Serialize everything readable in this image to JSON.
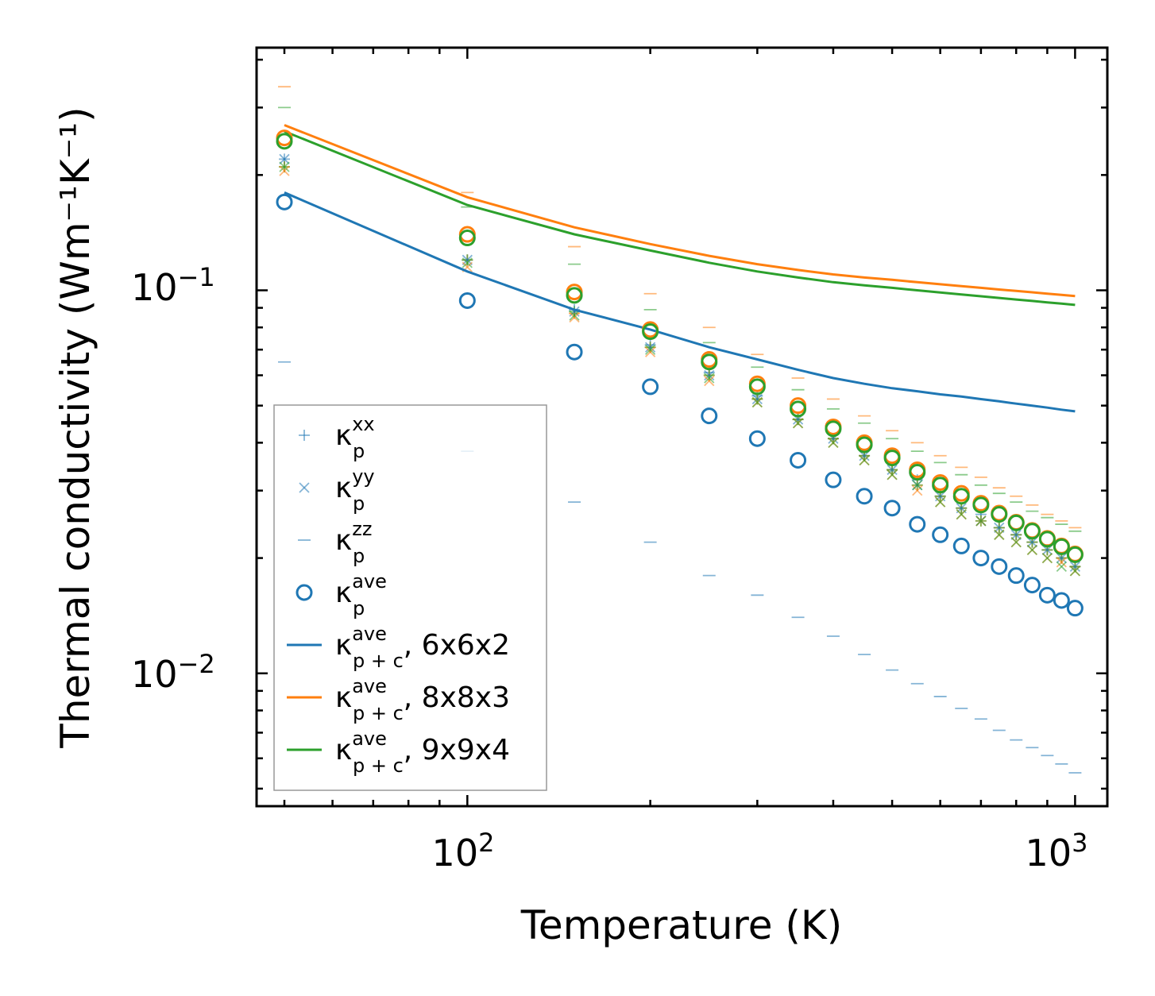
{
  "chart_data": {
    "type": "scatter",
    "title": "",
    "xlabel": "Temperature (K)",
    "ylabel": "Thermal conductivity (Wm⁻¹K⁻¹)",
    "xscale": "log",
    "yscale": "log",
    "xlim": [
      45,
      1130
    ],
    "ylim": [
      0.0045,
      0.43
    ],
    "x_ticks": [
      {
        "base": "10",
        "exp": "2"
      },
      {
        "base": "10",
        "exp": "3"
      }
    ],
    "y_ticks": [
      {
        "base": "10",
        "exp": "−1"
      },
      {
        "base": "10",
        "exp": "−2"
      }
    ],
    "x": [
      50,
      100,
      150,
      200,
      250,
      300,
      350,
      400,
      450,
      500,
      550,
      600,
      650,
      700,
      750,
      800,
      850,
      900,
      950,
      1000
    ],
    "series": [
      {
        "name": "k_p^xx 6x6x2",
        "marker": "plus",
        "color": "#1f77b4",
        "values": [
          0.22,
          0.12,
          0.089,
          0.072,
          0.061,
          0.053,
          0.046,
          0.041,
          0.037,
          0.034,
          0.032,
          0.029,
          0.027,
          0.026,
          0.024,
          0.023,
          0.022,
          0.021,
          0.02,
          0.019
        ]
      },
      {
        "name": "k_p^yy 6x6x2",
        "marker": "x",
        "color": "#1f77b4",
        "values": [
          0.22,
          0.12,
          0.088,
          0.071,
          0.06,
          0.052,
          0.046,
          0.041,
          0.037,
          0.034,
          0.031,
          0.029,
          0.027,
          0.025,
          0.024,
          0.023,
          0.022,
          0.021,
          0.02,
          0.019
        ]
      },
      {
        "name": "k_p^zz 6x6x2",
        "marker": "dash",
        "color": "#1f77b4",
        "values": [
          0.065,
          0.038,
          0.028,
          0.022,
          0.018,
          0.016,
          0.014,
          0.0125,
          0.0112,
          0.0102,
          0.0094,
          0.0087,
          0.0081,
          0.0076,
          0.0071,
          0.0067,
          0.0064,
          0.0061,
          0.0058,
          0.0055
        ]
      },
      {
        "name": "k_p^ave 6x6x2",
        "marker": "circle",
        "color": "#1f77b4",
        "values": [
          0.17,
          0.094,
          0.069,
          0.056,
          0.047,
          0.041,
          0.036,
          0.032,
          0.029,
          0.027,
          0.0245,
          0.023,
          0.0215,
          0.02,
          0.019,
          0.018,
          0.017,
          0.016,
          0.0155,
          0.0148
        ]
      },
      {
        "name": "k_p^xx 8x8x3",
        "marker": "plus",
        "color": "#ff7f0e",
        "values": [
          0.21,
          0.12,
          0.087,
          0.071,
          0.06,
          0.052,
          0.046,
          0.041,
          0.037,
          0.034,
          0.031,
          0.029,
          0.027,
          0.025,
          0.024,
          0.023,
          0.022,
          0.021,
          0.02,
          0.019
        ]
      },
      {
        "name": "k_p^yy 8x8x3",
        "marker": "x",
        "color": "#ff7f0e",
        "values": [
          0.205,
          0.115,
          0.085,
          0.069,
          0.058,
          0.051,
          0.045,
          0.04,
          0.036,
          0.033,
          0.03,
          0.028,
          0.026,
          0.025,
          0.023,
          0.022,
          0.021,
          0.02,
          0.0195,
          0.0185
        ]
      },
      {
        "name": "k_p^zz 8x8x3",
        "marker": "dash",
        "color": "#ff7f0e",
        "values": [
          0.34,
          0.18,
          0.13,
          0.098,
          0.08,
          0.068,
          0.059,
          0.052,
          0.047,
          0.043,
          0.04,
          0.037,
          0.0345,
          0.0325,
          0.0305,
          0.029,
          0.0275,
          0.026,
          0.025,
          0.024
        ]
      },
      {
        "name": "k_p^ave 8x8x3",
        "marker": "circle",
        "color": "#ff7f0e",
        "values": [
          0.25,
          0.14,
          0.099,
          0.079,
          0.066,
          0.057,
          0.05,
          0.044,
          0.04,
          0.037,
          0.034,
          0.0315,
          0.0295,
          0.0278,
          0.0262,
          0.0248,
          0.0236,
          0.0225,
          0.0215,
          0.0205
        ]
      },
      {
        "name": "k_p^xx 9x9x4",
        "marker": "plus",
        "color": "#2ca02c",
        "values": [
          0.21,
          0.12,
          0.088,
          0.071,
          0.06,
          0.052,
          0.046,
          0.041,
          0.037,
          0.034,
          0.031,
          0.029,
          0.027,
          0.025,
          0.024,
          0.023,
          0.022,
          0.021,
          0.02,
          0.019
        ]
      },
      {
        "name": "k_p^yy 9x9x4",
        "marker": "x",
        "color": "#2ca02c",
        "values": [
          0.21,
          0.118,
          0.086,
          0.07,
          0.059,
          0.051,
          0.045,
          0.04,
          0.036,
          0.033,
          0.031,
          0.028,
          0.026,
          0.025,
          0.023,
          0.022,
          0.021,
          0.02,
          0.019,
          0.0185
        ]
      },
      {
        "name": "k_p^zz 9x9x4",
        "marker": "dash",
        "color": "#2ca02c",
        "values": [
          0.3,
          0.165,
          0.117,
          0.089,
          0.073,
          0.063,
          0.055,
          0.049,
          0.045,
          0.041,
          0.038,
          0.0355,
          0.033,
          0.031,
          0.0295,
          0.028,
          0.0265,
          0.0255,
          0.0245,
          0.0235
        ]
      },
      {
        "name": "k_p^ave 9x9x4",
        "marker": "circle",
        "color": "#2ca02c",
        "values": [
          0.245,
          0.137,
          0.097,
          0.078,
          0.065,
          0.056,
          0.049,
          0.0435,
          0.0395,
          0.0365,
          0.0335,
          0.031,
          0.029,
          0.0275,
          0.026,
          0.0247,
          0.0235,
          0.0224,
          0.0214,
          0.0204
        ]
      },
      {
        "name": "k_p+c^ave 6x6x2",
        "marker": "line",
        "color": "#1f77b4",
        "values": [
          0.18,
          0.112,
          0.089,
          0.079,
          0.071,
          0.066,
          0.062,
          0.059,
          0.057,
          0.0555,
          0.0545,
          0.0535,
          0.0528,
          0.052,
          0.0513,
          0.0506,
          0.05,
          0.0494,
          0.0488,
          0.0483
        ]
      },
      {
        "name": "k_p+c^ave 8x8x3",
        "marker": "line",
        "color": "#ff7f0e",
        "values": [
          0.27,
          0.175,
          0.146,
          0.132,
          0.123,
          0.117,
          0.113,
          0.11,
          0.108,
          0.1065,
          0.105,
          0.1037,
          0.1025,
          0.1015,
          0.1005,
          0.0996,
          0.0988,
          0.098,
          0.0973,
          0.0966
        ]
      },
      {
        "name": "k_p+c^ave 9x9x4",
        "marker": "line",
        "color": "#2ca02c",
        "values": [
          0.26,
          0.167,
          0.14,
          0.127,
          0.118,
          0.112,
          0.108,
          0.105,
          0.103,
          0.1015,
          0.1,
          0.0987,
          0.0975,
          0.0965,
          0.0955,
          0.0946,
          0.0938,
          0.093,
          0.0923,
          0.0916
        ]
      }
    ],
    "legend": {
      "placement": "lower-left",
      "entries": [
        {
          "kind": "plus",
          "color": "#1f77b4",
          "base": "κ",
          "sup": "xx",
          "sub": "p",
          "suffix": ""
        },
        {
          "kind": "x",
          "color": "#1f77b4",
          "base": "κ",
          "sup": "yy",
          "sub": "p",
          "suffix": ""
        },
        {
          "kind": "dash",
          "color": "#1f77b4",
          "base": "κ",
          "sup": "zz",
          "sub": "p",
          "suffix": ""
        },
        {
          "kind": "circle",
          "color": "#1f77b4",
          "base": "κ",
          "sup": "ave",
          "sub": "p",
          "suffix": ""
        },
        {
          "kind": "line",
          "color": "#1f77b4",
          "base": "κ",
          "sup": "ave",
          "sub": "p + c",
          "suffix": ", 6x6x2"
        },
        {
          "kind": "line",
          "color": "#ff7f0e",
          "base": "κ",
          "sup": "ave",
          "sub": "p + c",
          "suffix": ", 8x8x3"
        },
        {
          "kind": "line",
          "color": "#2ca02c",
          "base": "κ",
          "sup": "ave",
          "sub": "p + c",
          "suffix": ", 9x9x4"
        }
      ]
    }
  }
}
